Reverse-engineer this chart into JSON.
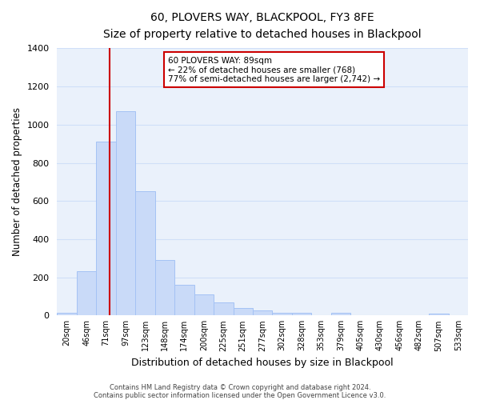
{
  "title": "60, PLOVERS WAY, BLACKPOOL, FY3 8FE",
  "subtitle": "Size of property relative to detached houses in Blackpool",
  "xlabel": "Distribution of detached houses by size in Blackpool",
  "ylabel": "Number of detached properties",
  "bar_labels": [
    "20sqm",
    "46sqm",
    "71sqm",
    "97sqm",
    "123sqm",
    "148sqm",
    "174sqm",
    "200sqm",
    "225sqm",
    "251sqm",
    "277sqm",
    "302sqm",
    "328sqm",
    "353sqm",
    "379sqm",
    "405sqm",
    "430sqm",
    "456sqm",
    "482sqm",
    "507sqm",
    "533sqm"
  ],
  "bar_values": [
    15,
    230,
    910,
    1070,
    650,
    290,
    160,
    110,
    70,
    40,
    25,
    15,
    15,
    0,
    15,
    0,
    0,
    0,
    0,
    10,
    0
  ],
  "bar_color": "#c9daf8",
  "bar_edge_color": "#a4c2f4",
  "grid_color": "#d0dff8",
  "bg_color": "#eaf1fb",
  "annotation_text1": "60 PLOVERS WAY: 89sqm",
  "annotation_text2": "← 22% of detached houses are smaller (768)",
  "annotation_text3": "77% of semi-detached houses are larger (2,742) →",
  "annotation_box_color": "#ffffff",
  "annotation_box_edge_color": "#cc0000",
  "red_line_color": "#cc0000",
  "ylim": [
    0,
    1400
  ],
  "yticks": [
    0,
    200,
    400,
    600,
    800,
    1000,
    1200,
    1400
  ],
  "footer1": "Contains HM Land Registry data © Crown copyright and database right 2024.",
  "footer2": "Contains public sector information licensed under the Open Government Licence v3.0."
}
